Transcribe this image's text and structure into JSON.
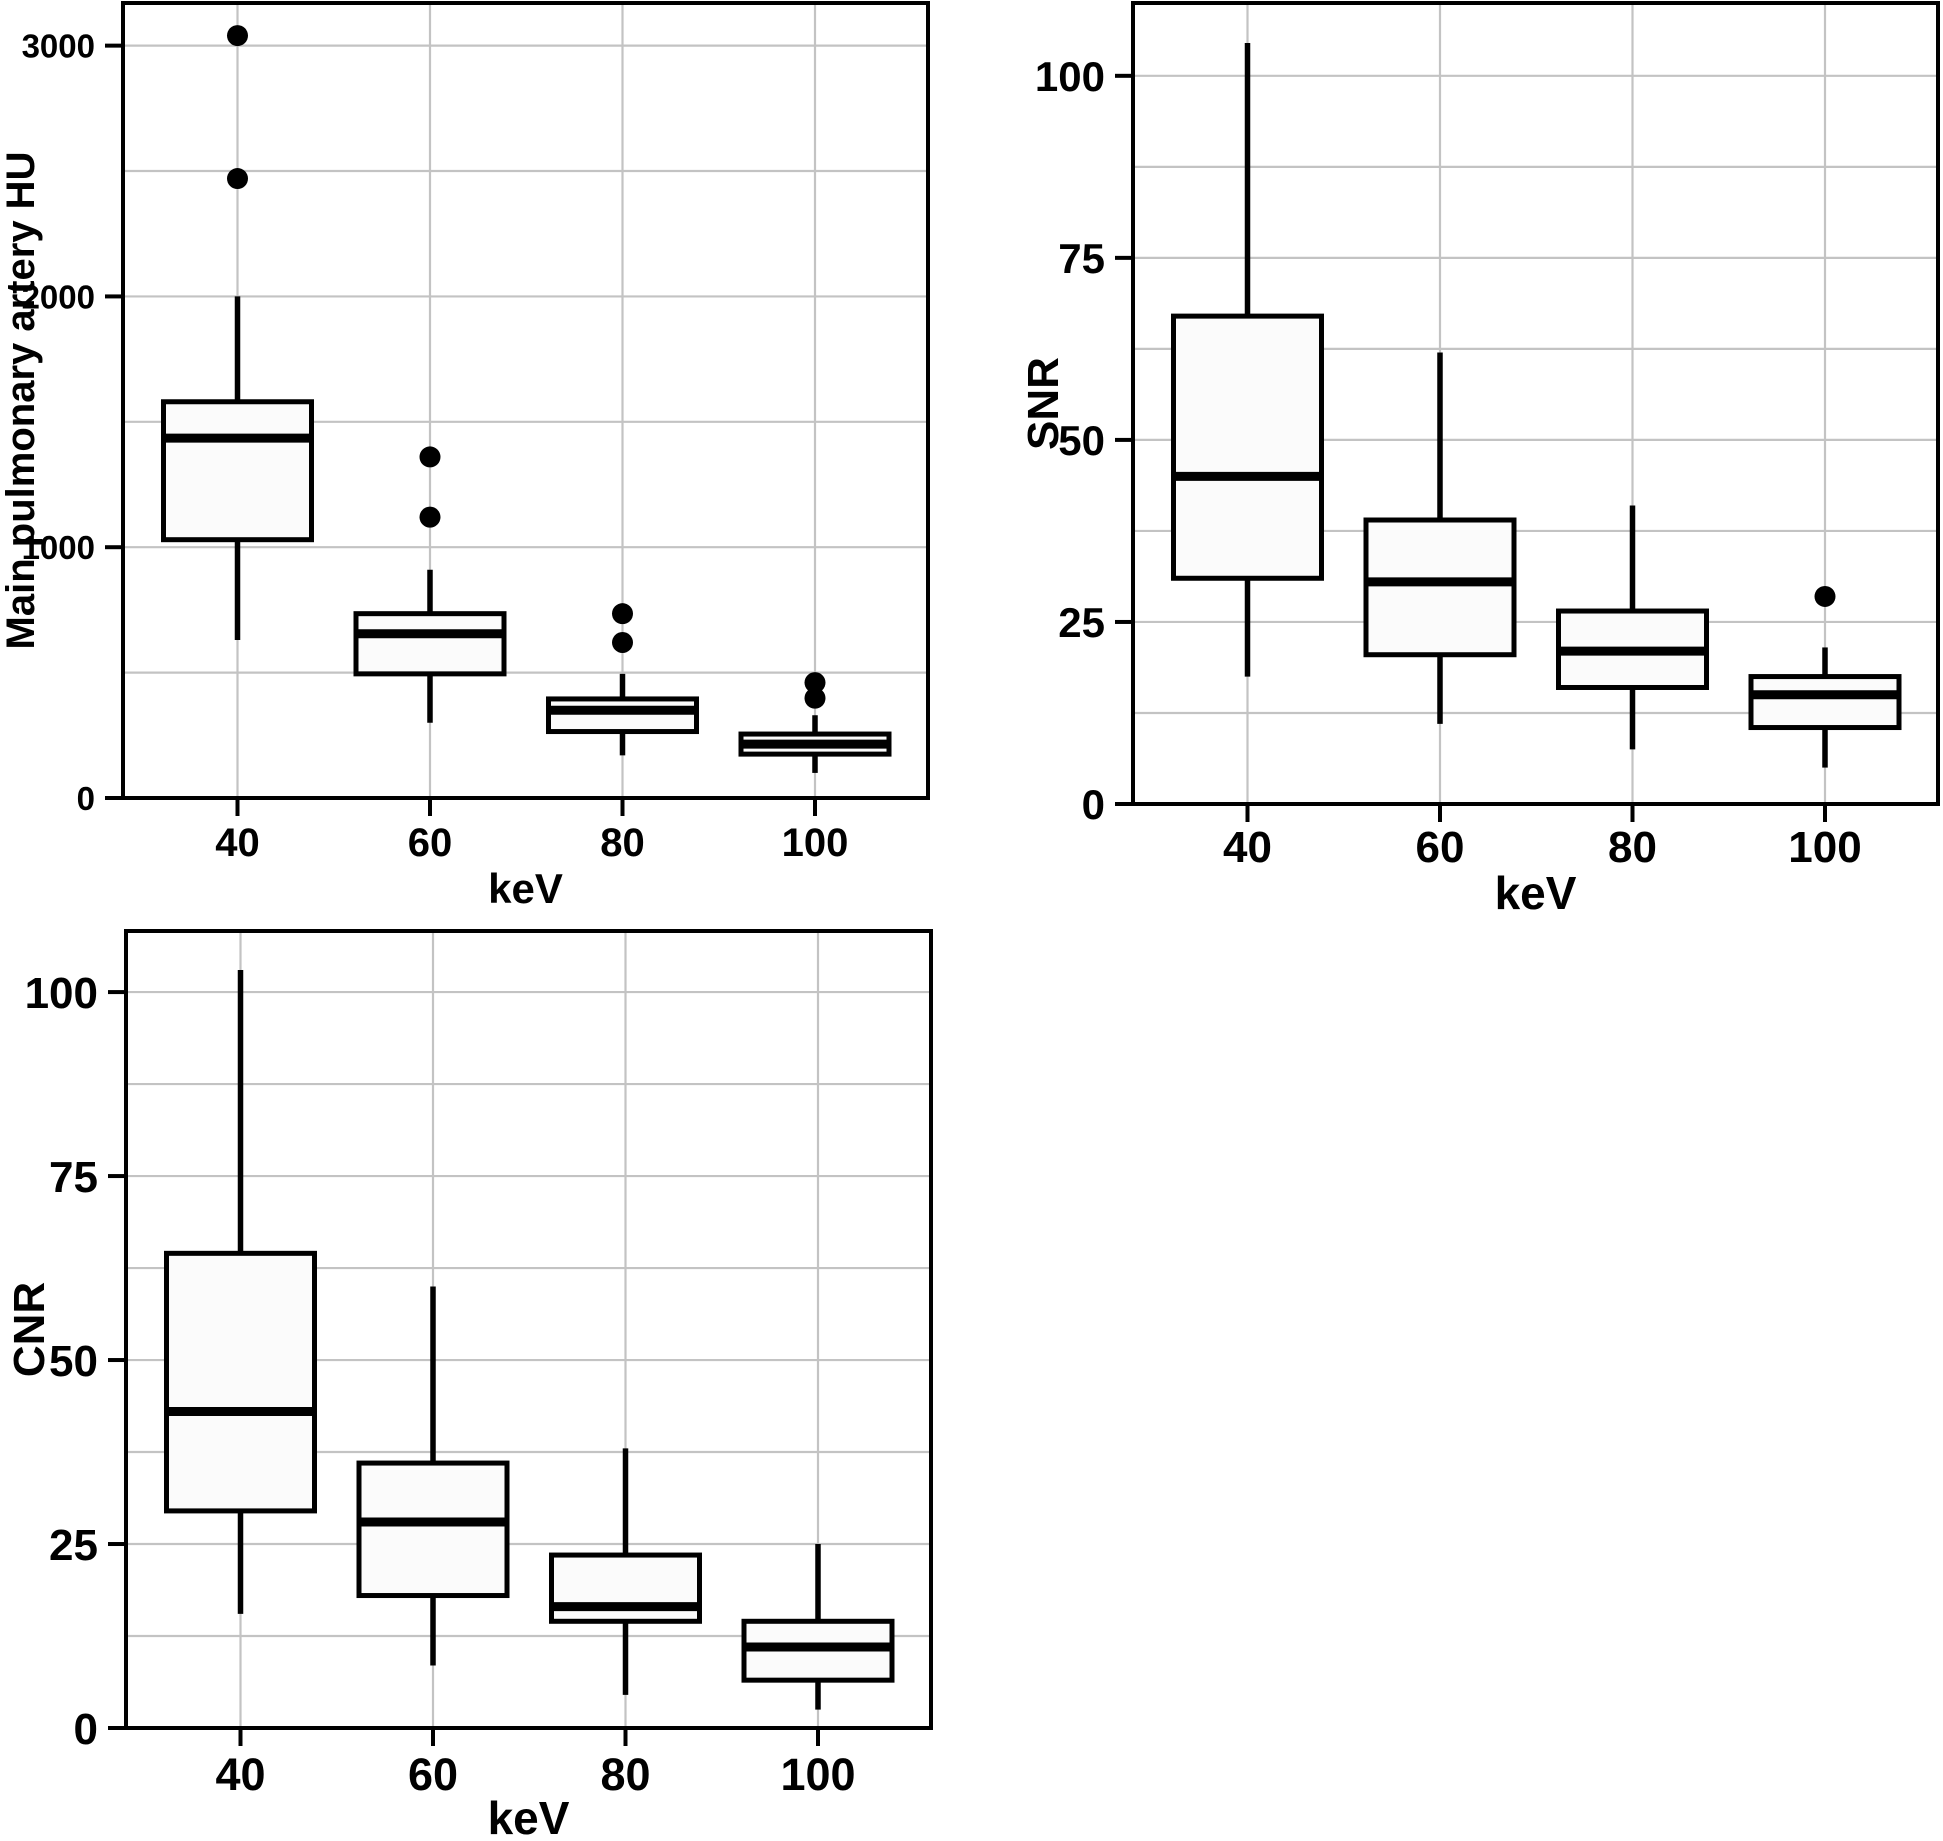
{
  "style": {
    "background": "#ffffff",
    "line_color": "#000000",
    "grid_color": "#c3c3c3",
    "box_fill": "#fbfbfb",
    "text_color": "#000000"
  },
  "chart_data": [
    {
      "type": "boxplot",
      "panel_id": "main-pulmonary-artery-hu",
      "title": "",
      "ylabel": "Main pulmonary artery HU",
      "xlabel": "keV",
      "categories": [
        "40",
        "60",
        "80",
        "100"
      ],
      "yticks": [
        0,
        1000,
        2000,
        3000
      ],
      "ytick_labels": [
        "0",
        "1000",
        "2000",
        "3000"
      ],
      "ylim": [
        0,
        3170
      ],
      "grid": true,
      "grid_step": 500,
      "legend_position": "none",
      "boxes": [
        {
          "category": "40",
          "whisker_low": 630,
          "q1": 1030,
          "median": 1435,
          "q3": 1580,
          "whisker_high": 2000,
          "outliers": [
            2470,
            3040
          ]
        },
        {
          "category": "60",
          "whisker_low": 300,
          "q1": 495,
          "median": 655,
          "q3": 735,
          "whisker_high": 910,
          "outliers": [
            1120,
            1360
          ]
        },
        {
          "category": "80",
          "whisker_low": 170,
          "q1": 265,
          "median": 350,
          "q3": 395,
          "whisker_high": 495,
          "outliers": [
            620,
            735
          ]
        },
        {
          "category": "100",
          "whisker_low": 100,
          "q1": 175,
          "median": 215,
          "q3": 255,
          "whisker_high": 330,
          "outliers": [
            398,
            460
          ]
        }
      ]
    },
    {
      "type": "boxplot",
      "panel_id": "snr",
      "title": "",
      "ylabel": "SNR",
      "xlabel": "keV",
      "categories": [
        "40",
        "60",
        "80",
        "100"
      ],
      "yticks": [
        0,
        25,
        50,
        75,
        100
      ],
      "ytick_labels": [
        "0",
        "25",
        "50",
        "75",
        "100"
      ],
      "ylim": [
        0,
        110
      ],
      "grid": true,
      "grid_step": 12.5,
      "legend_position": "none",
      "boxes": [
        {
          "category": "40",
          "whisker_low": 17.5,
          "q1": 31,
          "median": 45,
          "q3": 67,
          "whisker_high": 104.5,
          "outliers": []
        },
        {
          "category": "60",
          "whisker_low": 11,
          "q1": 20.5,
          "median": 30.5,
          "q3": 39,
          "whisker_high": 62,
          "outliers": []
        },
        {
          "category": "80",
          "whisker_low": 7.5,
          "q1": 16,
          "median": 21,
          "q3": 26.5,
          "whisker_high": 41,
          "outliers": []
        },
        {
          "category": "100",
          "whisker_low": 5,
          "q1": 10.5,
          "median": 15,
          "q3": 17.5,
          "whisker_high": 21.5,
          "outliers": [
            28.5
          ]
        }
      ]
    },
    {
      "type": "boxplot",
      "panel_id": "cnr",
      "title": "",
      "ylabel": "CNR",
      "xlabel": "keV",
      "categories": [
        "40",
        "60",
        "80",
        "100"
      ],
      "yticks": [
        0,
        25,
        50,
        75,
        100
      ],
      "ytick_labels": [
        "0",
        "25",
        "50",
        "75",
        "100"
      ],
      "ylim": [
        0,
        108.3
      ],
      "grid": true,
      "grid_step": 12.5,
      "legend_position": "none",
      "boxes": [
        {
          "category": "40",
          "whisker_low": 15.5,
          "q1": 29.5,
          "median": 43,
          "q3": 64.5,
          "whisker_high": 103,
          "outliers": []
        },
        {
          "category": "60",
          "whisker_low": 8.5,
          "q1": 18,
          "median": 28,
          "q3": 36,
          "whisker_high": 60,
          "outliers": []
        },
        {
          "category": "80",
          "whisker_low": 4.5,
          "q1": 14.5,
          "median": 16.5,
          "q3": 23.5,
          "whisker_high": 38,
          "outliers": []
        },
        {
          "category": "100",
          "whisker_low": 2.5,
          "q1": 6.5,
          "median": 11,
          "q3": 14.5,
          "whisker_high": 25,
          "outliers": []
        }
      ]
    }
  ]
}
